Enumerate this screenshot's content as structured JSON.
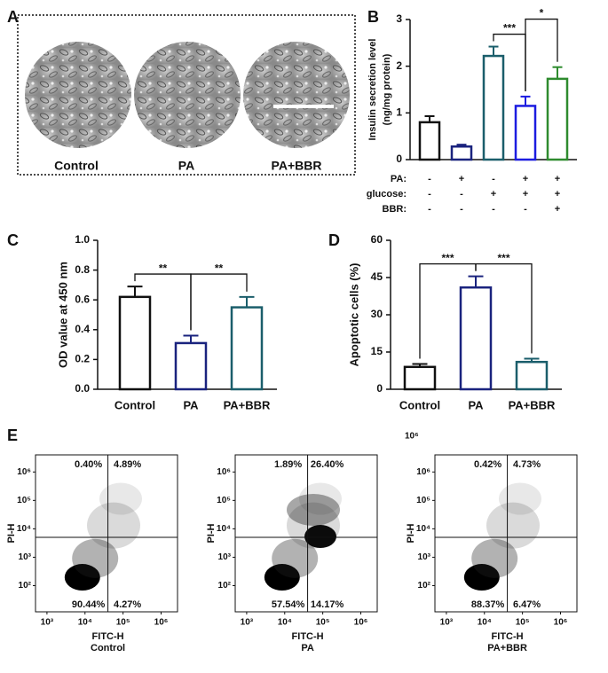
{
  "panel_labels": [
    "A",
    "B",
    "C",
    "D",
    "E"
  ],
  "micrographs": {
    "labels": [
      "Control",
      "PA",
      "PA+BBR"
    ]
  },
  "stray_label": "10⁶",
  "chart_data": [
    {
      "type": "bar",
      "ylabel": [
        "Insulin secretion level",
        "(ng/mg protein)"
      ],
      "conditions": [
        {
          "name": "PA:",
          "marks": [
            "-",
            "+",
            "-",
            "+",
            "+"
          ]
        },
        {
          "name": "glucose:",
          "marks": [
            "-",
            "-",
            "+",
            "+",
            "+"
          ]
        },
        {
          "name": "BBR:",
          "marks": [
            "-",
            "-",
            "-",
            "-",
            "+"
          ]
        }
      ],
      "values": [
        0.8,
        0.28,
        2.22,
        1.15,
        1.73
      ],
      "errors": [
        0.13,
        0.04,
        0.2,
        0.2,
        0.25
      ],
      "colors": [
        "#111111",
        "#1a237e",
        "#1b5e6b",
        "#1c1ce0",
        "#2e8b2e"
      ],
      "ylim": [
        0,
        3
      ],
      "yticks": [
        0,
        1,
        2,
        3
      ],
      "significance": [
        {
          "label": "***",
          "bars": [
            2,
            3
          ]
        },
        {
          "label": "*",
          "bars": [
            3,
            4
          ]
        }
      ]
    },
    {
      "type": "bar",
      "ylabel": [
        "OD value at 450 nm"
      ],
      "categories": [
        "Control",
        "PA",
        "PA+BBR"
      ],
      "values": [
        0.62,
        0.31,
        0.55
      ],
      "errors": [
        0.07,
        0.05,
        0.07
      ],
      "colors": [
        "#111111",
        "#1a237e",
        "#1b5e6b"
      ],
      "ylim": [
        0,
        1
      ],
      "yticks": [
        {
          "value": 0,
          "label": "0.0"
        },
        0.2,
        0.4,
        0.6,
        0.8,
        {
          "value": 1,
          "label": "1.0"
        }
      ],
      "significance": [
        {
          "label": "**",
          "bars": [
            0,
            1
          ]
        },
        {
          "label": "**",
          "bars": [
            1,
            2
          ]
        }
      ]
    },
    {
      "type": "bar",
      "ylabel": [
        "Apoptotic cells (%)"
      ],
      "categories": [
        "Control",
        "PA",
        "PA+BBR"
      ],
      "values": [
        9,
        41,
        11
      ],
      "errors": [
        1.2,
        4.5,
        1.3
      ],
      "colors": [
        "#111111",
        "#1a237e",
        "#1b5e6b"
      ],
      "ylim": [
        0,
        60
      ],
      "yticks": [
        0,
        15,
        30,
        45,
        60
      ],
      "significance": [
        {
          "label": "***",
          "bars": [
            0,
            1
          ]
        },
        {
          "label": "***",
          "bars": [
            1,
            2
          ]
        }
      ]
    },
    {
      "type": "flow",
      "title": "Control",
      "xlabel": "FITC-H",
      "ylabel": "PI-H",
      "log_scale": true,
      "xlim": [
        500,
        2700000
      ],
      "ylim": [
        12,
        4000000
      ],
      "xticks": [
        {
          "value": 1000,
          "label": "10³"
        },
        {
          "value": 10000,
          "label": "10⁴"
        },
        {
          "value": 100000,
          "label": "10⁵"
        },
        {
          "value": 1000000,
          "label": "10⁶"
        }
      ],
      "yticks": [
        {
          "value": 100,
          "label": "10²"
        },
        {
          "value": 1000,
          "label": "10³"
        },
        {
          "value": 10000,
          "label": "10⁴"
        },
        {
          "value": 100000,
          "label": "10⁵"
        },
        {
          "value": 1000000,
          "label": "10⁶"
        }
      ],
      "gates": {
        "x": 40000,
        "y": 5000
      },
      "quadrants": {
        "values": [
          0.4,
          4.89,
          90.44,
          4.27
        ],
        "value_labels": [
          "0.40%",
          "4.89%",
          "90.44%",
          "4.27%"
        ]
      },
      "label_color": "#2e6b2e"
    },
    {
      "type": "flow",
      "title": "PA",
      "xlabel": "FITC-H",
      "ylabel": "PI-H",
      "log_scale": true,
      "xlim": [
        500,
        2700000
      ],
      "ylim": [
        12,
        4000000
      ],
      "xticks": [
        {
          "value": 1000,
          "label": "10³"
        },
        {
          "value": 10000,
          "label": "10⁴"
        },
        {
          "value": 100000,
          "label": "10⁵"
        },
        {
          "value": 1000000,
          "label": "10⁶"
        }
      ],
      "yticks": [
        {
          "value": 100,
          "label": "10²"
        },
        {
          "value": 1000,
          "label": "10³"
        },
        {
          "value": 10000,
          "label": "10⁴"
        },
        {
          "value": 100000,
          "label": "10⁵"
        },
        {
          "value": 1000000,
          "label": "10⁶"
        }
      ],
      "gates": {
        "x": 40000,
        "y": 5000
      },
      "quadrants": {
        "values": [
          1.89,
          26.4,
          57.54,
          14.17
        ],
        "value_labels": [
          "1.89%",
          "26.40%",
          "57.54%",
          "14.17%"
        ]
      },
      "label_color": "#2e6b2e"
    },
    {
      "type": "flow",
      "title": "PA+BBR",
      "xlabel": "FITC-H",
      "ylabel": "PI-H",
      "log_scale": true,
      "xlim": [
        500,
        2700000
      ],
      "ylim": [
        12,
        4000000
      ],
      "xticks": [
        {
          "value": 1000,
          "label": "10³"
        },
        {
          "value": 10000,
          "label": "10⁴"
        },
        {
          "value": 100000,
          "label": "10⁵"
        },
        {
          "value": 1000000,
          "label": "10⁶"
        }
      ],
      "yticks": [
        {
          "value": 100,
          "label": "10²"
        },
        {
          "value": 1000,
          "label": "10³"
        },
        {
          "value": 10000,
          "label": "10⁴"
        },
        {
          "value": 100000,
          "label": "10⁵"
        },
        {
          "value": 1000000,
          "label": "10⁶"
        }
      ],
      "gates": {
        "x": 40000,
        "y": 5000
      },
      "quadrants": {
        "values": [
          0.42,
          4.73,
          88.37,
          6.47
        ],
        "value_labels": [
          "0.42%",
          "4.73%",
          "88.37%",
          "6.47%"
        ]
      },
      "label_color": "#2e6b2e"
    }
  ]
}
